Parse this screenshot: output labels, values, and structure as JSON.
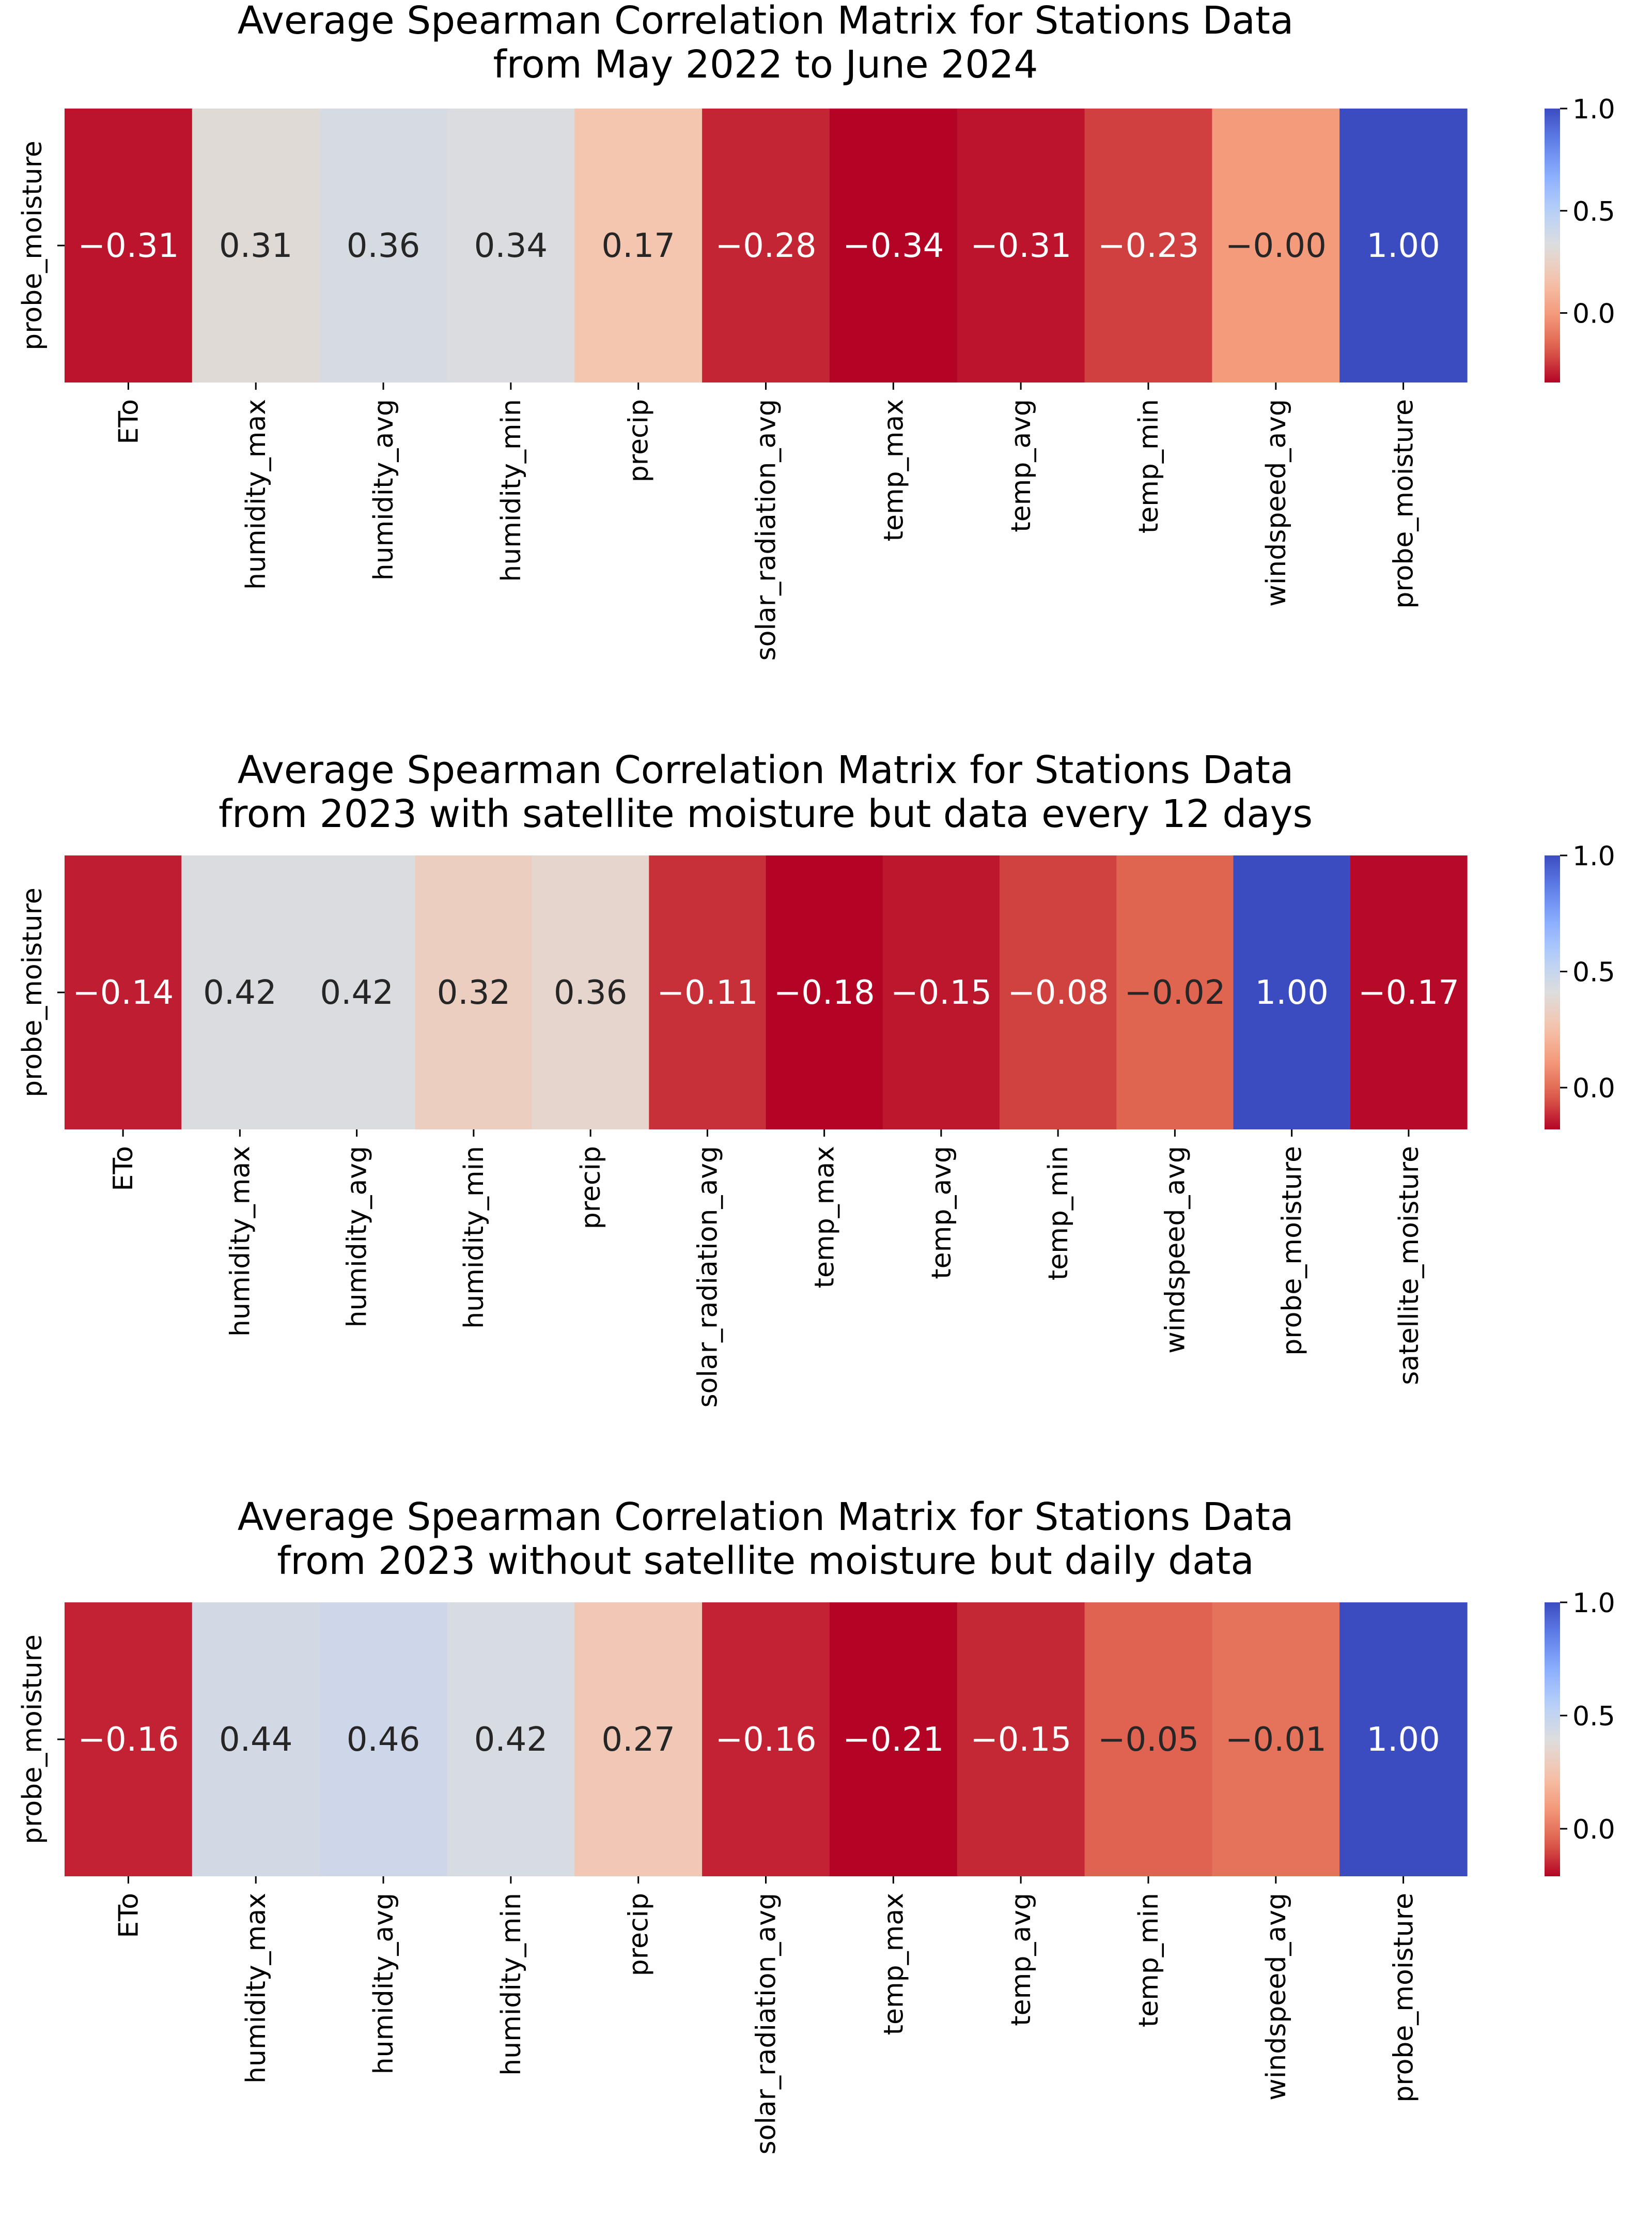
{
  "colormap": "coolwarm",
  "colors": {
    "text_dark": "#262626",
    "text_light": "#ffffff",
    "axis": "#000000",
    "background": "#ffffff"
  },
  "chart_data": [
    {
      "type": "heatmap",
      "title": [
        "Average Spearman Correlation Matrix for Stations Data",
        "from May 2022 to June 2024"
      ],
      "row_label": "probe_moisture",
      "categories": [
        "ETo",
        "humidity_max",
        "humidity_avg",
        "humidity_min",
        "precip",
        "solar_radiation_avg",
        "temp_max",
        "temp_avg",
        "temp_min",
        "windspeed_avg",
        "probe_moisture"
      ],
      "values": [
        -0.31,
        0.31,
        0.36,
        0.34,
        0.17,
        -0.28,
        -0.34,
        -0.31,
        -0.23,
        -0.0,
        1.0
      ],
      "annotations": [
        "−0.31",
        "0.31",
        "0.36",
        "0.34",
        "0.17",
        "−0.28",
        "−0.34",
        "−0.31",
        "−0.23",
        "−0.00",
        "1.00"
      ],
      "vmin": -0.34,
      "vmax": 1.0,
      "colorbar": {
        "ticks": [
          0.0,
          0.5,
          1.0
        ],
        "tick_labels": [
          "0.0",
          "0.5",
          "1.0"
        ]
      }
    },
    {
      "type": "heatmap",
      "title": [
        "Average Spearman Correlation Matrix for Stations Data",
        "from 2023 with satellite moisture but data every 12 days"
      ],
      "row_label": "probe_moisture",
      "categories": [
        "ETo",
        "humidity_max",
        "humidity_avg",
        "humidity_min",
        "precip",
        "solar_radiation_avg",
        "temp_max",
        "temp_avg",
        "temp_min",
        "windspeed_avg",
        "probe_moisture",
        "satellite_moisture"
      ],
      "values": [
        -0.14,
        0.42,
        0.42,
        0.32,
        0.36,
        -0.11,
        -0.18,
        -0.15,
        -0.08,
        -0.02,
        1.0,
        -0.17
      ],
      "annotations": [
        "−0.14",
        "0.42",
        "0.42",
        "0.32",
        "0.36",
        "−0.11",
        "−0.18",
        "−0.15",
        "−0.08",
        "−0.02",
        "1.00",
        "−0.17"
      ],
      "vmin": -0.18,
      "vmax": 1.0,
      "colorbar": {
        "ticks": [
          0.0,
          0.5,
          1.0
        ],
        "tick_labels": [
          "0.0",
          "0.5",
          "1.0"
        ]
      }
    },
    {
      "type": "heatmap",
      "title": [
        "Average Spearman Correlation Matrix for Stations Data",
        "from 2023 without satellite moisture but daily data"
      ],
      "row_label": "probe_moisture",
      "categories": [
        "ETo",
        "humidity_max",
        "humidity_avg",
        "humidity_min",
        "precip",
        "solar_radiation_avg",
        "temp_max",
        "temp_avg",
        "temp_min",
        "windspeed_avg",
        "probe_moisture"
      ],
      "values": [
        -0.16,
        0.44,
        0.46,
        0.42,
        0.27,
        -0.16,
        -0.21,
        -0.15,
        -0.05,
        -0.01,
        1.0
      ],
      "annotations": [
        "−0.16",
        "0.44",
        "0.46",
        "0.42",
        "0.27",
        "−0.16",
        "−0.21",
        "−0.15",
        "−0.05",
        "−0.01",
        "1.00"
      ],
      "vmin": -0.21,
      "vmax": 1.0,
      "colorbar": {
        "ticks": [
          0.0,
          0.5,
          1.0
        ],
        "tick_labels": [
          "0.0",
          "0.5",
          "1.0"
        ]
      }
    }
  ]
}
